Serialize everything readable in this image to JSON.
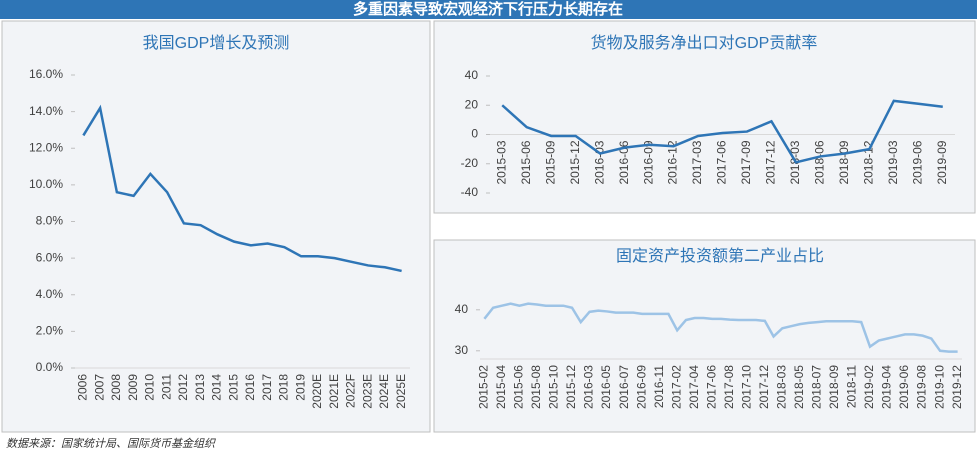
{
  "title": "多重因素导致宏观经济下行压力长期存在",
  "source": "数据来源：国家统计局、国际货币基金组织",
  "chart_data": [
    {
      "type": "line",
      "title": "我国GDP增长及预测",
      "color": "#2e75b6",
      "categories": [
        "2006",
        "2007",
        "2008",
        "2009",
        "2010",
        "2011",
        "2012",
        "2013",
        "2014",
        "2015",
        "2016",
        "2017",
        "2018",
        "2019",
        "2020E",
        "2021E",
        "2022F",
        "2023E",
        "2024E",
        "2025E"
      ],
      "values": [
        12.7,
        14.2,
        9.6,
        9.4,
        10.6,
        9.6,
        7.9,
        7.8,
        7.3,
        6.9,
        6.7,
        6.8,
        6.6,
        6.1,
        6.1,
        6.0,
        5.8,
        5.6,
        5.5,
        5.3
      ],
      "ylim": [
        0,
        16
      ],
      "yticks": [
        {
          "value": 0,
          "label": "0.0%"
        },
        {
          "value": 2,
          "label": "2.0%"
        },
        {
          "value": 4,
          "label": "4.0%"
        },
        {
          "value": 6,
          "label": "6.0%"
        },
        {
          "value": 8,
          "label": "8.0%"
        },
        {
          "value": 10,
          "label": "10.0%"
        },
        {
          "value": 12,
          "label": "12.0%"
        },
        {
          "value": 14,
          "label": "14.0%"
        },
        {
          "value": 16,
          "label": "16.0%"
        }
      ]
    },
    {
      "type": "line",
      "title": "货物及服务净出口对GDP贡献率",
      "color": "#2e75b6",
      "categories": [
        "2015-03",
        "2015-06",
        "2015-09",
        "2015-12",
        "2016-03",
        "2016-06",
        "2016-09",
        "2016-12",
        "2017-03",
        "2017-06",
        "2017-09",
        "2017-12",
        "2018-03",
        "2018-06",
        "2018-09",
        "2018-12",
        "2019-03",
        "2019-06",
        "2019-09"
      ],
      "values": [
        20,
        5,
        -1,
        -1,
        -13,
        -9,
        -7,
        -8,
        -1,
        1,
        2,
        9,
        -19,
        -15,
        -13,
        -10,
        23,
        21,
        19
      ],
      "ylim": [
        -40,
        40
      ],
      "yticks": [
        -40,
        -20,
        0,
        20,
        40
      ]
    },
    {
      "type": "line",
      "title": "固定资产投资额第二产业占比",
      "color": "#9dc3e6",
      "categories": [
        "2015-02",
        null,
        "2015-04",
        null,
        "2015-06",
        null,
        "2015-08",
        null,
        "2015-10",
        null,
        "2015-12",
        null,
        "2016-03",
        null,
        "2016-05",
        null,
        "2016-07",
        null,
        "2016-09",
        null,
        "2016-11",
        null,
        "2017-02",
        null,
        "2017-04",
        null,
        "2017-06",
        null,
        "2017-08",
        null,
        "2017-10",
        null,
        "2017-12",
        null,
        "2018-03",
        null,
        "2018-05",
        null,
        "2018-07",
        null,
        "2018-09",
        null,
        "2018-11",
        null,
        "2019-02",
        null,
        "2019-04",
        null,
        "2019-06",
        null,
        "2019-08",
        null,
        "2019-10",
        null,
        "2019-12"
      ],
      "values": [
        37.8,
        40.5,
        41,
        41.5,
        41,
        41.5,
        41.3,
        41,
        41,
        41,
        40.5,
        37,
        39.5,
        39.8,
        39.6,
        39.3,
        39.3,
        39.3,
        39,
        39,
        39,
        39,
        35,
        37.5,
        38,
        38,
        37.8,
        37.8,
        37.6,
        37.5,
        37.5,
        37.5,
        37.3,
        33.5,
        35.5,
        36,
        36.5,
        36.8,
        37,
        37.2,
        37.2,
        37.2,
        37.2,
        37,
        31,
        32.5,
        33,
        33.5,
        34,
        34,
        33.7,
        33,
        30,
        29.8,
        29.8
      ],
      "ylim": [
        28,
        45
      ],
      "yticks": [
        30,
        40
      ]
    }
  ]
}
